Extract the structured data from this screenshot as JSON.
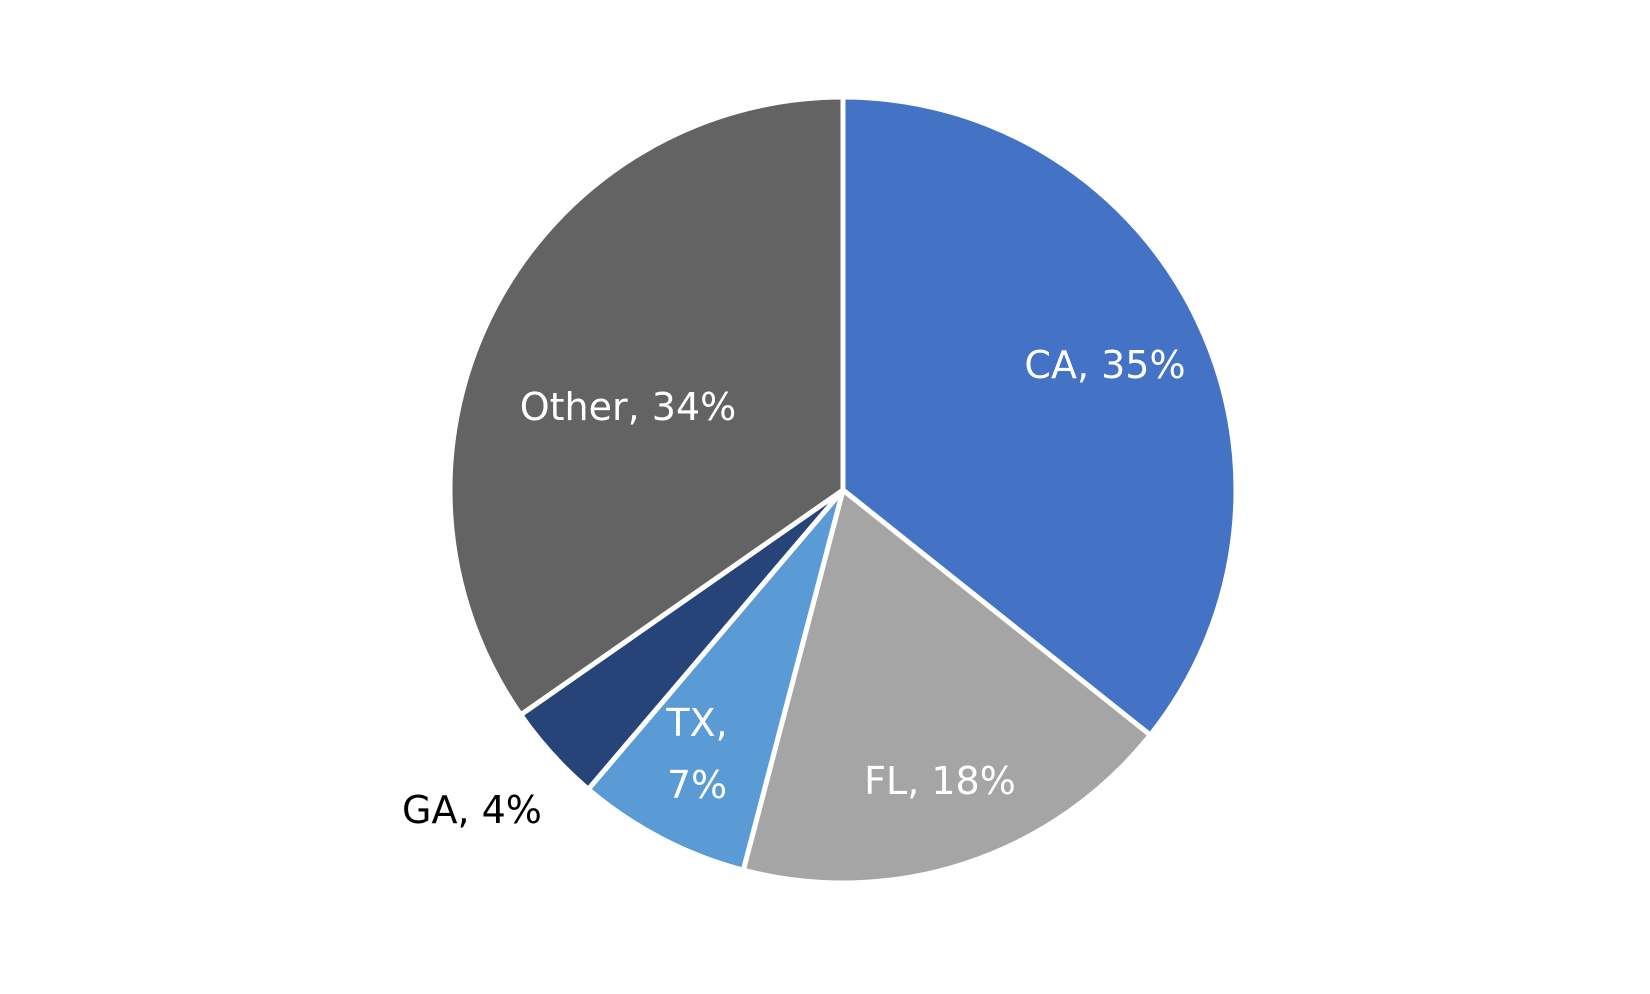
{
  "chart_data": {
    "type": "pie",
    "start_angle_deg": 0,
    "direction": "clockwise",
    "slices": [
      {
        "label": "CA",
        "value": 35,
        "display": "CA, 35%",
        "color": "#4472C4",
        "label_color": "#ffffff",
        "label_placement": "inside"
      },
      {
        "label": "FL",
        "value": 18,
        "display": "FL, 18%",
        "color": "#A5A5A5",
        "label_color": "#ffffff",
        "label_placement": "inside"
      },
      {
        "label": "TX",
        "value": 7,
        "display": "TX, 7%",
        "display_lines": [
          "TX,",
          "7%"
        ],
        "color": "#5B9BD5",
        "label_color": "#ffffff",
        "label_placement": "inside"
      },
      {
        "label": "GA",
        "value": 4,
        "display": "GA, 4%",
        "color": "#264478",
        "label_color": "#000000",
        "label_placement": "outside"
      },
      {
        "label": "Other",
        "value": 34,
        "display": "Other, 34%",
        "color": "#636363",
        "label_color": "#ffffff",
        "label_placement": "inside"
      }
    ],
    "separator_color": "#ffffff",
    "legend": "none"
  }
}
